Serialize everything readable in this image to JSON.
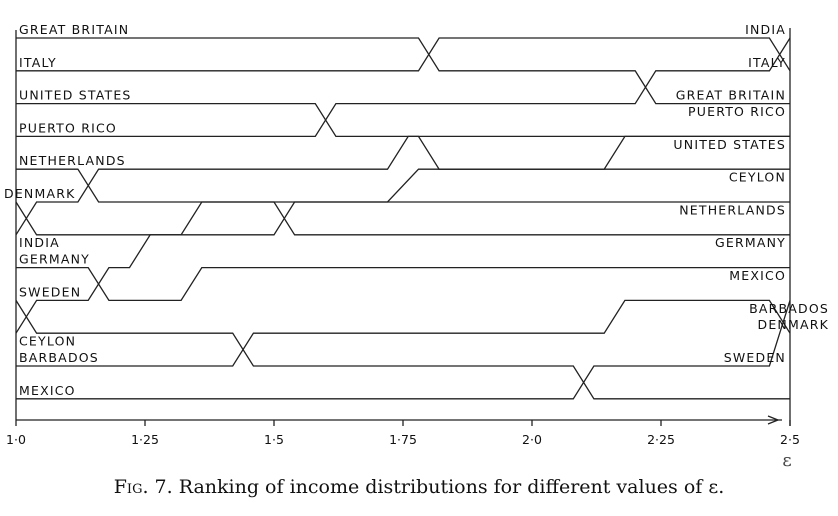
{
  "chart_data": {
    "type": "line",
    "xlabel": "ε",
    "xlim": [
      1.0,
      2.5
    ],
    "x_ticks": [
      {
        "value": 1.0,
        "label": "1·0"
      },
      {
        "value": 1.25,
        "label": "1·25"
      },
      {
        "value": 1.5,
        "label": "1·5"
      },
      {
        "value": 1.75,
        "label": "1·75"
      },
      {
        "value": 2.0,
        "label": "2·0"
      },
      {
        "value": 2.25,
        "label": "2·25"
      },
      {
        "value": 2.5,
        "label": "2·5"
      }
    ],
    "ranks": 12,
    "series": [
      {
        "name": "GREAT BRITAIN",
        "points": [
          [
            1.0,
            1
          ],
          [
            1.78,
            1
          ],
          [
            1.82,
            2
          ],
          [
            2.2,
            2
          ],
          [
            2.24,
            3
          ],
          [
            2.5,
            3
          ]
        ]
      },
      {
        "name": "ITALY",
        "points": [
          [
            1.0,
            2
          ],
          [
            1.78,
            2
          ],
          [
            1.82,
            1
          ],
          [
            2.46,
            1
          ],
          [
            2.5,
            2
          ]
        ]
      },
      {
        "name": "UNITED STATES",
        "points": [
          [
            1.0,
            3
          ],
          [
            1.58,
            3
          ],
          [
            1.62,
            4
          ],
          [
            1.78,
            4
          ],
          [
            1.82,
            5
          ],
          [
            2.5,
            5
          ]
        ]
      },
      {
        "name": "PUERTO RICO",
        "points": [
          [
            1.0,
            4
          ],
          [
            1.58,
            4
          ],
          [
            1.62,
            3
          ],
          [
            2.2,
            3
          ],
          [
            2.24,
            2
          ],
          [
            2.46,
            2
          ],
          [
            2.5,
            1
          ]
        ]
      },
      {
        "name": "NETHERLANDS",
        "points": [
          [
            1.0,
            5
          ],
          [
            1.12,
            5
          ],
          [
            1.16,
            6
          ],
          [
            1.5,
            6
          ],
          [
            1.54,
            7
          ],
          [
            2.5,
            7
          ]
        ]
      },
      {
        "name": "DENMARK",
        "points": [
          [
            1.0,
            6
          ],
          [
            1.04,
            7
          ],
          [
            1.5,
            7
          ],
          [
            1.54,
            6
          ],
          [
            1.72,
            6
          ],
          [
            1.78,
            5
          ],
          [
            2.14,
            5
          ],
          [
            2.18,
            4
          ],
          [
            2.5,
            4
          ]
        ]
      },
      {
        "name": "INDIA",
        "points": [
          [
            1.0,
            7
          ],
          [
            1.04,
            6
          ],
          [
            1.12,
            6
          ],
          [
            1.16,
            5
          ],
          [
            1.72,
            5
          ],
          [
            1.76,
            4
          ],
          [
            2.5,
            4
          ]
        ]
      },
      {
        "name": "GERMANY",
        "points": [
          [
            1.0,
            8
          ],
          [
            1.14,
            8
          ],
          [
            1.18,
            9
          ],
          [
            1.32,
            9
          ],
          [
            1.36,
            8
          ],
          [
            2.5,
            8
          ]
        ]
      },
      {
        "name": "SWEDEN",
        "points": [
          [
            1.0,
            9
          ],
          [
            1.04,
            10
          ],
          [
            1.42,
            10
          ],
          [
            1.46,
            11
          ],
          [
            2.08,
            11
          ],
          [
            2.12,
            12
          ],
          [
            2.5,
            12
          ]
        ]
      },
      {
        "name": "CEYLON",
        "points": [
          [
            1.0,
            10
          ],
          [
            1.04,
            9
          ],
          [
            1.14,
            9
          ],
          [
            1.18,
            8
          ],
          [
            1.22,
            8
          ],
          [
            1.26,
            7
          ],
          [
            1.32,
            7
          ],
          [
            1.36,
            6
          ],
          [
            2.5,
            6
          ]
        ]
      },
      {
        "name": "BARBADOS",
        "points": [
          [
            1.0,
            11
          ],
          [
            1.42,
            11
          ],
          [
            1.46,
            10
          ],
          [
            2.14,
            10
          ],
          [
            2.18,
            9
          ],
          [
            2.46,
            9
          ],
          [
            2.5,
            10
          ]
        ]
      },
      {
        "name": "MEXICO",
        "points": [
          [
            1.0,
            12
          ],
          [
            2.08,
            12
          ],
          [
            2.12,
            11
          ],
          [
            2.46,
            11
          ],
          [
            2.5,
            9
          ]
        ]
      }
    ],
    "left_labels": [
      {
        "text": "GREAT BRITAIN",
        "rank": 1
      },
      {
        "text": "ITALY",
        "rank": 2
      },
      {
        "text": "UNITED STATES",
        "rank": 3
      },
      {
        "text": "PUERTO RICO",
        "rank": 4
      },
      {
        "text": "NETHERLANDS",
        "rank": 5
      },
      {
        "text": "DENMARK",
        "rank": 6
      },
      {
        "text": "INDIA",
        "rank": 7.5
      },
      {
        "text": "GERMANY",
        "rank": 8
      },
      {
        "text": "SWEDEN",
        "rank": 9
      },
      {
        "text": "CEYLON",
        "rank": 10.5
      },
      {
        "text": "BARBADOS",
        "rank": 11
      },
      {
        "text": "MEXICO",
        "rank": 12
      }
    ],
    "right_labels": [
      {
        "text": "INDIA",
        "rank": 1
      },
      {
        "text": "ITALY",
        "rank": 2
      },
      {
        "text": "GREAT BRITAIN",
        "rank": 3
      },
      {
        "text": "PUERTO RICO",
        "rank": 3.5
      },
      {
        "text": "UNITED STATES",
        "rank": 4.5
      },
      {
        "text": "CEYLON",
        "rank": 5.5
      },
      {
        "text": "NETHERLANDS",
        "rank": 6.5
      },
      {
        "text": "GERMANY",
        "rank": 7.5
      },
      {
        "text": "MEXICO",
        "rank": 8.5
      },
      {
        "text": "BARBADOS",
        "rank": 9.5
      },
      {
        "text": "DENMARK",
        "rank": 10
      },
      {
        "text": "SWEDEN",
        "rank": 11
      }
    ],
    "grid": false,
    "legend": "none"
  },
  "caption": {
    "fig_label": "Fig. 7.",
    "text": "Ranking of income distributions for different values of ε."
  }
}
